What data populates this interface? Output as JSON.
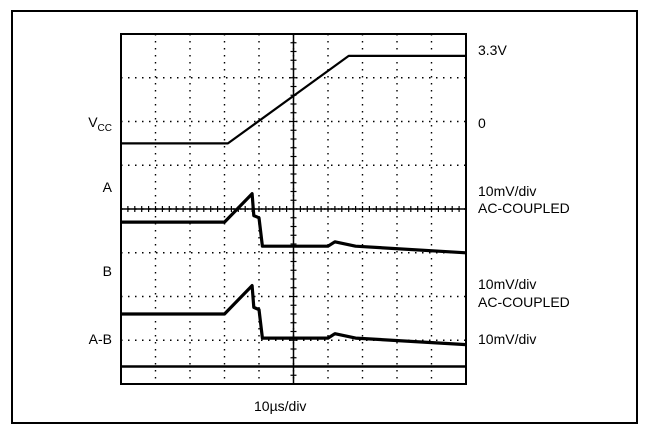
{
  "chart_data": {
    "type": "line",
    "title": "",
    "x_axis": {
      "label": "10µs/div",
      "divisions": 10
    },
    "y_axis": {
      "divisions": 8
    },
    "grid": true,
    "traces": [
      {
        "name": "VCC",
        "left_label": {
          "main": "V",
          "sub": "CC"
        },
        "right_labels": [
          "3.3V",
          "0"
        ],
        "points": [
          [
            0,
            0
          ],
          [
            3.1,
            0
          ],
          [
            6.6,
            3.3
          ],
          [
            10,
            3.3
          ]
        ]
      },
      {
        "name": "A",
        "left_label": {
          "main": "A",
          "sub": ""
        },
        "right_labels": [
          "10mV/div",
          "AC-COUPLED"
        ],
        "points": [
          [
            0,
            0
          ],
          [
            3.0,
            0
          ],
          [
            3.8,
            0.65
          ],
          [
            3.85,
            0.15
          ],
          [
            4.0,
            0.1
          ],
          [
            4.1,
            -0.55
          ],
          [
            6.0,
            -0.55
          ],
          [
            6.2,
            -0.45
          ],
          [
            6.8,
            -0.55
          ],
          [
            10,
            -0.7
          ]
        ]
      },
      {
        "name": "B",
        "left_label": {
          "main": "B",
          "sub": ""
        },
        "right_labels": [
          "10mV/div",
          "AC-COUPLED"
        ],
        "points": [
          [
            0,
            0
          ],
          [
            3.0,
            0
          ],
          [
            3.8,
            0.65
          ],
          [
            3.85,
            0.15
          ],
          [
            4.0,
            0.1
          ],
          [
            4.1,
            -0.55
          ],
          [
            6.0,
            -0.55
          ],
          [
            6.2,
            -0.45
          ],
          [
            6.8,
            -0.55
          ],
          [
            10,
            -0.7
          ]
        ]
      },
      {
        "name": "A-B",
        "left_label": {
          "main": "A-B",
          "sub": ""
        },
        "right_labels": [
          "10mV/div"
        ],
        "points": [
          [
            0,
            0
          ],
          [
            10,
            0
          ]
        ]
      }
    ]
  }
}
